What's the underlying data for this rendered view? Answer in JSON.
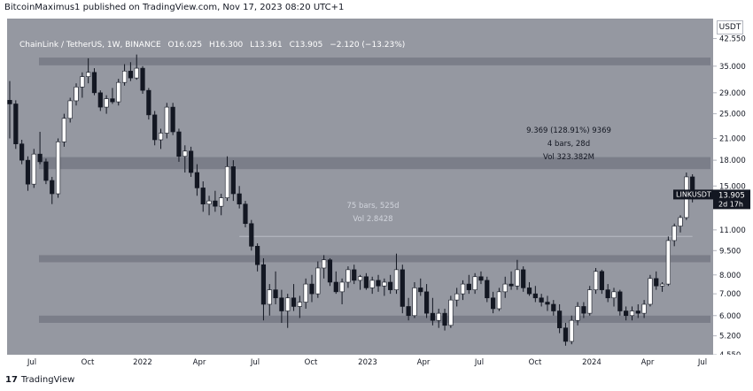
{
  "header": {
    "published_by": "BitcoinMaximus1 published on TradingView.com, Nov 17, 2023 08:20 UTC+1"
  },
  "legend": {
    "symbol": "ChainLink / TetherUS, 1W, BINANCE",
    "open_label": "O",
    "open": "16.025",
    "high_label": "H",
    "high": "16.300",
    "low_label": "L",
    "low": "13.361",
    "close_label": "C",
    "close": "13.905",
    "change": "−2.120 (−13.23%)"
  },
  "currency": "USDT",
  "price_tag": {
    "symbol": "LINKUSDT",
    "price": "13.905",
    "countdown": "2d 17h"
  },
  "footer": {
    "logo": "17",
    "brand": "TradingView"
  },
  "colors": {
    "background": "#9598a1",
    "up": "#ffffff",
    "down": "#131722",
    "zone": "#787b86",
    "text": "#131722"
  },
  "chart_data": {
    "type": "candlestick",
    "title": "ChainLink / TetherUS, 1W, BINANCE",
    "y_scale": "log",
    "ylim": [
      4.55,
      49
    ],
    "y_ticks": [
      "42.550",
      "35.000",
      "29.000",
      "25.000",
      "21.000",
      "18.000",
      "15.000",
      "13.000",
      "11.000",
      "9.500",
      "8.000",
      "7.000",
      "6.000",
      "5.200",
      "4.550"
    ],
    "x_ticks": [
      "Jul",
      "Oct",
      "2022",
      "Apr",
      "Jul",
      "Oct",
      "2023",
      "Apr",
      "Jul",
      "Oct",
      "2024",
      "Apr",
      "Jul"
    ],
    "zones": [
      {
        "low": 35.2,
        "high": 37.2
      },
      {
        "low": 16.9,
        "high": 18.4
      },
      {
        "low": 8.75,
        "high": 9.2
      },
      {
        "low": 5.7,
        "high": 6.0
      }
    ],
    "annotations": [
      {
        "lines": [
          "9.369 (128.91%) 9369",
          "4 bars, 28d",
          "Vol 323.382M"
        ],
        "price": 21.5
      },
      {
        "lines": [
          "75 bars, 525d",
          "Vol 2.8428"
        ],
        "price": 12.5
      }
    ],
    "ranges": [
      {
        "price": 10.5,
        "from_week": 38,
        "to_week": 113
      }
    ],
    "last_price": 13.905,
    "candles": [
      {
        "o": 27.5,
        "h": 31.5,
        "l": 21.0,
        "c": 26.8
      },
      {
        "o": 26.8,
        "h": 27.5,
        "l": 19.5,
        "c": 20.2
      },
      {
        "o": 20.2,
        "h": 20.8,
        "l": 17.5,
        "c": 18.0
      },
      {
        "o": 18.0,
        "h": 18.5,
        "l": 14.5,
        "c": 15.2
      },
      {
        "o": 15.2,
        "h": 19.5,
        "l": 14.8,
        "c": 18.8
      },
      {
        "o": 18.8,
        "h": 22.0,
        "l": 17.5,
        "c": 17.8
      },
      {
        "o": 17.8,
        "h": 18.2,
        "l": 15.2,
        "c": 15.6
      },
      {
        "o": 15.6,
        "h": 16.0,
        "l": 13.2,
        "c": 14.2
      },
      {
        "o": 14.2,
        "h": 21.0,
        "l": 13.8,
        "c": 20.5
      },
      {
        "o": 20.5,
        "h": 25.0,
        "l": 19.8,
        "c": 24.2
      },
      {
        "o": 24.2,
        "h": 28.0,
        "l": 23.5,
        "c": 27.4
      },
      {
        "o": 27.4,
        "h": 31.0,
        "l": 26.5,
        "c": 30.2
      },
      {
        "o": 30.2,
        "h": 33.5,
        "l": 28.0,
        "c": 32.5
      },
      {
        "o": 32.5,
        "h": 37.0,
        "l": 31.0,
        "c": 33.5
      },
      {
        "o": 33.5,
        "h": 34.5,
        "l": 28.5,
        "c": 29.0
      },
      {
        "o": 29.0,
        "h": 29.5,
        "l": 25.5,
        "c": 26.2
      },
      {
        "o": 26.2,
        "h": 28.5,
        "l": 25.0,
        "c": 27.8
      },
      {
        "o": 27.8,
        "h": 30.0,
        "l": 26.8,
        "c": 27.2
      },
      {
        "o": 27.2,
        "h": 32.0,
        "l": 26.5,
        "c": 31.2
      },
      {
        "o": 31.2,
        "h": 35.5,
        "l": 30.5,
        "c": 33.8
      },
      {
        "o": 33.8,
        "h": 36.0,
        "l": 31.5,
        "c": 32.2
      },
      {
        "o": 32.2,
        "h": 38.0,
        "l": 31.8,
        "c": 34.5
      },
      {
        "o": 34.5,
        "h": 35.0,
        "l": 28.8,
        "c": 29.5
      },
      {
        "o": 29.5,
        "h": 30.0,
        "l": 24.0,
        "c": 24.8
      },
      {
        "o": 24.8,
        "h": 25.5,
        "l": 20.0,
        "c": 20.8
      },
      {
        "o": 20.8,
        "h": 22.5,
        "l": 19.5,
        "c": 21.8
      },
      {
        "o": 21.8,
        "h": 27.0,
        "l": 21.0,
        "c": 26.2
      },
      {
        "o": 26.2,
        "h": 27.0,
        "l": 21.5,
        "c": 22.0
      },
      {
        "o": 22.0,
        "h": 22.5,
        "l": 17.8,
        "c": 18.5
      },
      {
        "o": 18.5,
        "h": 20.0,
        "l": 16.5,
        "c": 19.2
      },
      {
        "o": 19.2,
        "h": 19.8,
        "l": 16.0,
        "c": 16.5
      },
      {
        "o": 16.5,
        "h": 17.5,
        "l": 14.0,
        "c": 14.8
      },
      {
        "o": 14.8,
        "h": 15.5,
        "l": 12.5,
        "c": 13.2
      },
      {
        "o": 13.2,
        "h": 14.0,
        "l": 12.2,
        "c": 13.5
      },
      {
        "o": 13.5,
        "h": 14.5,
        "l": 12.5,
        "c": 13.0
      },
      {
        "o": 13.0,
        "h": 14.2,
        "l": 12.2,
        "c": 13.8
      },
      {
        "o": 13.8,
        "h": 18.5,
        "l": 13.5,
        "c": 17.2
      },
      {
        "o": 17.2,
        "h": 18.0,
        "l": 13.5,
        "c": 14.2
      },
      {
        "o": 14.2,
        "h": 15.0,
        "l": 12.8,
        "c": 13.2
      },
      {
        "o": 13.2,
        "h": 13.5,
        "l": 11.2,
        "c": 11.5
      },
      {
        "o": 11.5,
        "h": 11.8,
        "l": 9.5,
        "c": 9.8
      },
      {
        "o": 9.8,
        "h": 10.0,
        "l": 8.2,
        "c": 8.6
      },
      {
        "o": 8.6,
        "h": 9.0,
        "l": 5.8,
        "c": 6.5
      },
      {
        "o": 6.5,
        "h": 7.5,
        "l": 6.0,
        "c": 7.2
      },
      {
        "o": 7.2,
        "h": 8.2,
        "l": 6.5,
        "c": 6.8
      },
      {
        "o": 6.8,
        "h": 7.2,
        "l": 5.7,
        "c": 6.2
      },
      {
        "o": 6.2,
        "h": 7.0,
        "l": 5.5,
        "c": 6.8
      },
      {
        "o": 6.8,
        "h": 7.5,
        "l": 6.2,
        "c": 6.4
      },
      {
        "o": 6.4,
        "h": 6.9,
        "l": 5.9,
        "c": 6.6
      },
      {
        "o": 6.6,
        "h": 7.8,
        "l": 6.3,
        "c": 7.5
      },
      {
        "o": 7.5,
        "h": 8.0,
        "l": 6.6,
        "c": 7.0
      },
      {
        "o": 7.0,
        "h": 8.8,
        "l": 6.8,
        "c": 8.4
      },
      {
        "o": 8.4,
        "h": 9.2,
        "l": 7.8,
        "c": 8.9
      },
      {
        "o": 8.9,
        "h": 9.0,
        "l": 7.4,
        "c": 7.6
      },
      {
        "o": 7.6,
        "h": 8.2,
        "l": 7.0,
        "c": 7.1
      },
      {
        "o": 7.1,
        "h": 7.8,
        "l": 6.5,
        "c": 7.6
      },
      {
        "o": 7.6,
        "h": 8.5,
        "l": 7.3,
        "c": 8.3
      },
      {
        "o": 8.3,
        "h": 8.6,
        "l": 7.5,
        "c": 7.7
      },
      {
        "o": 7.7,
        "h": 8.0,
        "l": 7.2,
        "c": 7.9
      },
      {
        "o": 7.9,
        "h": 8.1,
        "l": 7.2,
        "c": 7.3
      },
      {
        "o": 7.3,
        "h": 7.9,
        "l": 7.0,
        "c": 7.7
      },
      {
        "o": 7.7,
        "h": 8.0,
        "l": 7.1,
        "c": 7.4
      },
      {
        "o": 7.4,
        "h": 7.8,
        "l": 6.9,
        "c": 7.6
      },
      {
        "o": 7.6,
        "h": 8.0,
        "l": 7.0,
        "c": 7.2
      },
      {
        "o": 7.2,
        "h": 9.3,
        "l": 7.0,
        "c": 8.3
      },
      {
        "o": 8.3,
        "h": 8.6,
        "l": 6.1,
        "c": 6.4
      },
      {
        "o": 6.4,
        "h": 6.8,
        "l": 5.8,
        "c": 6.0
      },
      {
        "o": 6.0,
        "h": 7.6,
        "l": 5.9,
        "c": 7.3
      },
      {
        "o": 7.3,
        "h": 7.8,
        "l": 6.9,
        "c": 7.1
      },
      {
        "o": 7.1,
        "h": 7.5,
        "l": 5.9,
        "c": 6.1
      },
      {
        "o": 6.1,
        "h": 6.8,
        "l": 5.6,
        "c": 5.8
      },
      {
        "o": 5.8,
        "h": 6.3,
        "l": 5.5,
        "c": 6.1
      },
      {
        "o": 6.1,
        "h": 6.3,
        "l": 5.4,
        "c": 5.6
      },
      {
        "o": 5.6,
        "h": 6.9,
        "l": 5.5,
        "c": 6.7
      },
      {
        "o": 6.7,
        "h": 7.3,
        "l": 6.4,
        "c": 7.0
      },
      {
        "o": 7.0,
        "h": 7.7,
        "l": 6.7,
        "c": 7.5
      },
      {
        "o": 7.5,
        "h": 8.0,
        "l": 7.0,
        "c": 7.2
      },
      {
        "o": 7.2,
        "h": 8.1,
        "l": 7.0,
        "c": 7.9
      },
      {
        "o": 7.9,
        "h": 8.2,
        "l": 7.5,
        "c": 7.7
      },
      {
        "o": 7.7,
        "h": 7.9,
        "l": 6.6,
        "c": 6.8
      },
      {
        "o": 6.8,
        "h": 7.1,
        "l": 6.1,
        "c": 6.3
      },
      {
        "o": 6.3,
        "h": 7.3,
        "l": 6.2,
        "c": 7.1
      },
      {
        "o": 7.1,
        "h": 7.9,
        "l": 6.8,
        "c": 7.5
      },
      {
        "o": 7.5,
        "h": 8.2,
        "l": 7.2,
        "c": 7.4
      },
      {
        "o": 7.4,
        "h": 8.9,
        "l": 7.2,
        "c": 8.3
      },
      {
        "o": 8.3,
        "h": 8.5,
        "l": 7.1,
        "c": 7.3
      },
      {
        "o": 7.3,
        "h": 7.6,
        "l": 6.9,
        "c": 7.0
      },
      {
        "o": 7.0,
        "h": 7.4,
        "l": 6.6,
        "c": 6.8
      },
      {
        "o": 6.8,
        "h": 7.0,
        "l": 6.4,
        "c": 6.6
      },
      {
        "o": 6.6,
        "h": 6.9,
        "l": 6.2,
        "c": 6.5
      },
      {
        "o": 6.5,
        "h": 6.7,
        "l": 6.0,
        "c": 6.2
      },
      {
        "o": 6.2,
        "h": 6.5,
        "l": 5.3,
        "c": 5.5
      },
      {
        "o": 5.5,
        "h": 5.7,
        "l": 4.85,
        "c": 5.0
      },
      {
        "o": 5.0,
        "h": 6.0,
        "l": 4.9,
        "c": 5.8
      },
      {
        "o": 5.8,
        "h": 6.6,
        "l": 5.6,
        "c": 6.4
      },
      {
        "o": 6.4,
        "h": 6.6,
        "l": 5.9,
        "c": 6.1
      },
      {
        "o": 6.1,
        "h": 7.4,
        "l": 6.0,
        "c": 7.2
      },
      {
        "o": 7.2,
        "h": 8.4,
        "l": 7.0,
        "c": 8.2
      },
      {
        "o": 8.2,
        "h": 8.3,
        "l": 7.0,
        "c": 7.2
      },
      {
        "o": 7.2,
        "h": 7.5,
        "l": 6.6,
        "c": 6.8
      },
      {
        "o": 6.8,
        "h": 7.3,
        "l": 6.4,
        "c": 7.1
      },
      {
        "o": 7.1,
        "h": 7.2,
        "l": 6.0,
        "c": 6.2
      },
      {
        "o": 6.2,
        "h": 6.4,
        "l": 5.8,
        "c": 6.0
      },
      {
        "o": 6.0,
        "h": 6.4,
        "l": 5.8,
        "c": 6.2
      },
      {
        "o": 6.2,
        "h": 6.5,
        "l": 5.9,
        "c": 6.1
      },
      {
        "o": 6.1,
        "h": 6.7,
        "l": 5.9,
        "c": 6.5
      },
      {
        "o": 6.5,
        "h": 8.0,
        "l": 6.4,
        "c": 7.8
      },
      {
        "o": 7.8,
        "h": 8.2,
        "l": 7.2,
        "c": 7.4
      },
      {
        "o": 7.4,
        "h": 7.6,
        "l": 7.1,
        "c": 7.5
      },
      {
        "o": 7.5,
        "h": 10.5,
        "l": 7.4,
        "c": 10.2
      },
      {
        "o": 10.2,
        "h": 11.5,
        "l": 9.8,
        "c": 11.3
      },
      {
        "o": 11.3,
        "h": 12.2,
        "l": 10.8,
        "c": 12.0
      },
      {
        "o": 12.0,
        "h": 16.5,
        "l": 11.8,
        "c": 16.0
      },
      {
        "o": 16.0,
        "h": 16.3,
        "l": 13.361,
        "c": 13.905
      }
    ]
  }
}
